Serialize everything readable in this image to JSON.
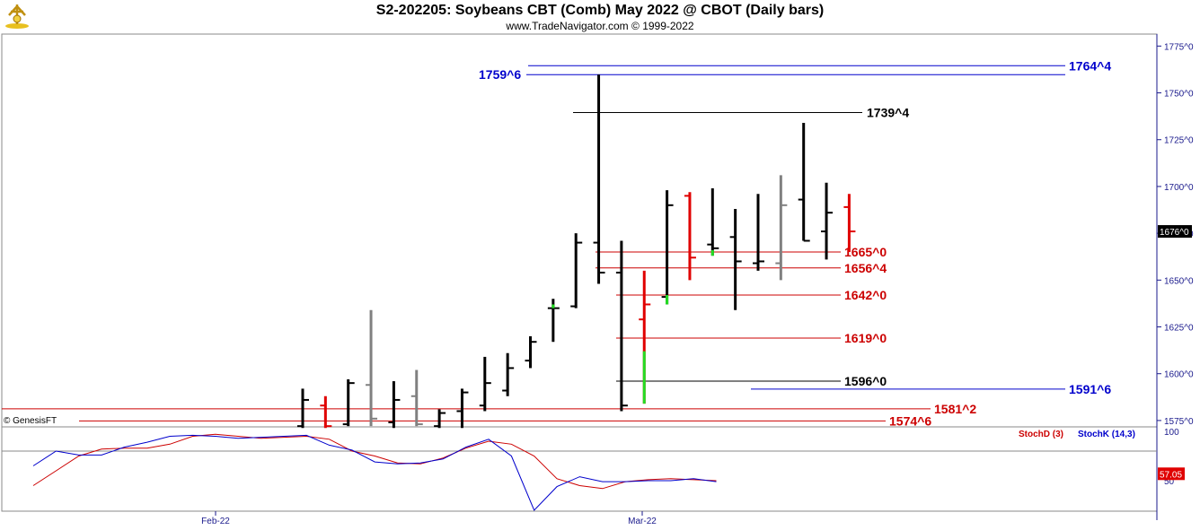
{
  "header": {
    "title": "S2-202205:  Soybeans CBT (Comb) May 2022 @ CBOT  (Daily bars)",
    "subtitle": "www.TradeNavigator.com © 1999-2022"
  },
  "copyright_label": "© GenesisFT",
  "colors": {
    "up": "#000000",
    "down": "#e00000",
    "neutral": "#808080",
    "green": "#22dd22",
    "blue_line": "#0000cc",
    "red_line": "#cc0000",
    "black_line": "#000000",
    "axis": "#1a1a8c"
  },
  "chart_data": [
    {
      "type": "ohlc",
      "title": "S2-202205:  Soybeans CBT (Comb) May 2022 @ CBOT  (Daily bars)",
      "y_ticks": [
        "1575^0",
        "1600^0",
        "1625^0",
        "1650^0",
        "1675^0",
        "1700^0",
        "1725^0",
        "1750^0",
        "1775^0"
      ],
      "y_tick_values": [
        1575,
        1600,
        1625,
        1650,
        1675,
        1700,
        1725,
        1750,
        1775
      ],
      "ylim": [
        1571.6,
        1781.4
      ],
      "x_ticks": [
        "Feb-22",
        "Mar-22"
      ],
      "last_price_label": "1676^0",
      "bars": [
        {
          "o": 1572,
          "h": 1592,
          "l": 1571,
          "c": 1586,
          "color": "black"
        },
        {
          "o": 1583,
          "h": 1588,
          "l": 1571,
          "c": 1572,
          "color": "red"
        },
        {
          "o": 1573,
          "h": 1597,
          "l": 1572,
          "c": 1595,
          "color": "black"
        },
        {
          "o": 1594,
          "h": 1634,
          "l": 1572,
          "c": 1576,
          "color": "gray"
        },
        {
          "o": 1574,
          "h": 1596,
          "l": 1571,
          "c": 1586,
          "color": "black"
        },
        {
          "o": 1588,
          "h": 1602,
          "l": 1572,
          "c": 1573,
          "color": "gray"
        },
        {
          "o": 1572,
          "h": 1581,
          "l": 1571,
          "c": 1579,
          "color": "black"
        },
        {
          "o": 1580,
          "h": 1592,
          "l": 1571,
          "c": 1590,
          "color": "black"
        },
        {
          "o": 1583,
          "h": 1609,
          "l": 1580,
          "c": 1595,
          "color": "black"
        },
        {
          "o": 1591,
          "h": 1611,
          "l": 1588,
          "c": 1603,
          "color": "black"
        },
        {
          "o": 1607,
          "h": 1620,
          "l": 1603,
          "c": 1617,
          "color": "black"
        },
        {
          "o": 1635,
          "h": 1640,
          "l": 1617,
          "c": 1635,
          "color": "black"
        },
        {
          "o": 1636,
          "h": 1675,
          "l": 1635,
          "c": 1670,
          "color": "black"
        },
        {
          "o": 1670,
          "h": 1759.75,
          "l": 1648,
          "c": 1654,
          "color": "black"
        },
        {
          "o": 1654,
          "h": 1671,
          "l": 1580,
          "c": 1583,
          "color": "black"
        },
        {
          "o": 1629,
          "h": 1655,
          "l": 1584,
          "c": 1637,
          "color": "red"
        },
        {
          "o": 1641,
          "h": 1698,
          "l": 1637,
          "c": 1690,
          "color": "black"
        },
        {
          "o": 1695,
          "h": 1697,
          "l": 1650,
          "c": 1662,
          "color": "red"
        },
        {
          "o": 1669,
          "h": 1699,
          "l": 1663,
          "c": 1667,
          "color": "black"
        },
        {
          "o": 1673,
          "h": 1688,
          "l": 1634,
          "c": 1660,
          "color": "black"
        },
        {
          "o": 1659,
          "h": 1696,
          "l": 1655,
          "c": 1660,
          "color": "black"
        },
        {
          "o": 1659,
          "h": 1706,
          "l": 1650,
          "c": 1690,
          "color": "gray"
        },
        {
          "o": 1693,
          "h": 1734,
          "l": 1671,
          "c": 1671,
          "color": "black"
        },
        {
          "o": 1676,
          "h": 1702,
          "l": 1661,
          "c": 1686,
          "color": "black"
        },
        {
          "o": 1689,
          "h": 1696,
          "l": 1665,
          "c": 1676,
          "color": "red"
        }
      ],
      "levels": [
        {
          "label": "1764^4",
          "value": 1764.5,
          "color": "blue",
          "side": "right"
        },
        {
          "label": "1759^6",
          "value": 1759.75,
          "color": "blue",
          "side": "left"
        },
        {
          "label": "1739^4",
          "value": 1739.5,
          "color": "black",
          "side": "right"
        },
        {
          "label": "1665^0",
          "value": 1665,
          "color": "red",
          "side": "right"
        },
        {
          "label": "1656^4",
          "value": 1656.5,
          "color": "red",
          "side": "right"
        },
        {
          "label": "1642^0",
          "value": 1642,
          "color": "red",
          "side": "right"
        },
        {
          "label": "1619^0",
          "value": 1619,
          "color": "red",
          "side": "right"
        },
        {
          "label": "1596^0",
          "value": 1596,
          "color": "black",
          "side": "right"
        },
        {
          "label": "1591^6",
          "value": 1591.75,
          "color": "blue",
          "side": "right"
        },
        {
          "label": "1581^2",
          "value": 1581.25,
          "color": "red",
          "side": "right"
        },
        {
          "label": "1574^6",
          "value": 1574.75,
          "color": "red",
          "side": "right"
        }
      ]
    },
    {
      "type": "line",
      "title": "",
      "legend": [
        "StochD (3)",
        "StochK (14,3)"
      ],
      "y_ticks": [
        "100",
        "50"
      ],
      "last_value_label": "57.05",
      "series": [
        {
          "name": "StochD (3)",
          "color": "#cc0000",
          "values": [
            45,
            60,
            75,
            82,
            83,
            83,
            87,
            95,
            97,
            95,
            93,
            94,
            95,
            92,
            80,
            75,
            68,
            67,
            73,
            83,
            90,
            87,
            75,
            52,
            45,
            42,
            49,
            51,
            52,
            51,
            50
          ]
        },
        {
          "name": "StochK (14,3)",
          "color": "#0000cc",
          "values": [
            65,
            80,
            76,
            76,
            84,
            89,
            95,
            96,
            95,
            93,
            94,
            95,
            96,
            86,
            81,
            69,
            67,
            68,
            72,
            84,
            92,
            75,
            20,
            44,
            54,
            49,
            49,
            50,
            50,
            52,
            49
          ]
        }
      ]
    }
  ]
}
